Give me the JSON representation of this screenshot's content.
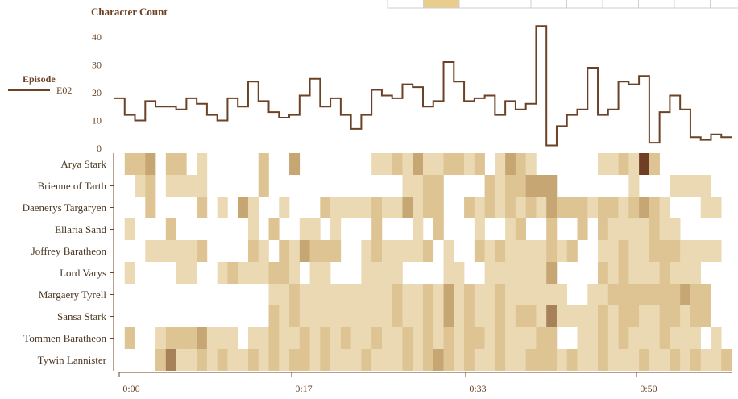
{
  "top_strip": {
    "cells": 10,
    "selected_index": 1
  },
  "chart_data": [
    {
      "type": "line",
      "title": "Character Count",
      "ylim": [
        0,
        45
      ],
      "yticks": [
        0,
        10,
        20,
        30,
        40
      ],
      "legend": {
        "title": "Episode",
        "placement": "left",
        "entries": [
          "E02"
        ]
      },
      "series": [
        {
          "name": "E02",
          "color": "#6b4226",
          "values": [
            18,
            12,
            10,
            17,
            15,
            15,
            14,
            18,
            16,
            12,
            10,
            18,
            15,
            24,
            17,
            13,
            11,
            12,
            19,
            25,
            15,
            18,
            12,
            7,
            12,
            21,
            19,
            18,
            23,
            22,
            15,
            17,
            31,
            24,
            17,
            18,
            19,
            12,
            17,
            14,
            16,
            44,
            1,
            8,
            12,
            14,
            29,
            12,
            14,
            24,
            23,
            26,
            2,
            13,
            19,
            14,
            4,
            3,
            5,
            4
          ]
        }
      ]
    },
    {
      "type": "heatmap",
      "rows": [
        "Arya Stark",
        "Brienne of Tarth",
        "Daenerys Targaryen",
        "Ellaria Sand",
        "Joffrey Baratheon",
        "Lord Varys",
        "Margaery Tyrell",
        "Sansa Stark",
        "Tommen Baratheon",
        "Tywin Lannister"
      ],
      "x_ticks": [
        "0:00",
        "0:17",
        "0:33",
        "0:50"
      ],
      "colors": [
        "#ead9b2",
        "#dec393",
        "#c6a774",
        "#a7815a",
        "#6e3f24"
      ],
      "matrix": [
        [
          0,
          2,
          2,
          3,
          0,
          2,
          2,
          0,
          1,
          0,
          0,
          0,
          0,
          0,
          2,
          0,
          0,
          3,
          0,
          0,
          0,
          0,
          0,
          0,
          0,
          1,
          1,
          2,
          1,
          3,
          1,
          1,
          2,
          2,
          1,
          2,
          0,
          1,
          3,
          2,
          1,
          0,
          0,
          0,
          0,
          0,
          0,
          1,
          1,
          2,
          1,
          5,
          2,
          0,
          0,
          0,
          0,
          0,
          0,
          0
        ],
        [
          0,
          0,
          1,
          2,
          0,
          1,
          1,
          1,
          1,
          0,
          0,
          0,
          0,
          0,
          2,
          0,
          0,
          0,
          0,
          0,
          0,
          0,
          0,
          0,
          0,
          0,
          0,
          0,
          1,
          1,
          2,
          2,
          0,
          0,
          0,
          0,
          2,
          1,
          2,
          2,
          3,
          3,
          3,
          0,
          0,
          0,
          0,
          0,
          0,
          0,
          1,
          0,
          0,
          0,
          1,
          1,
          1,
          1,
          0,
          0
        ],
        [
          0,
          0,
          0,
          2,
          0,
          0,
          0,
          0,
          2,
          0,
          1,
          0,
          3,
          1,
          0,
          0,
          1,
          0,
          0,
          0,
          2,
          1,
          1,
          1,
          1,
          2,
          1,
          1,
          3,
          1,
          2,
          2,
          0,
          0,
          2,
          1,
          2,
          1,
          2,
          1,
          2,
          1,
          3,
          2,
          2,
          2,
          1,
          2,
          2,
          1,
          2,
          3,
          2,
          1,
          0,
          0,
          0,
          1,
          1,
          0
        ],
        [
          0,
          1,
          0,
          0,
          0,
          2,
          0,
          0,
          0,
          0,
          0,
          0,
          0,
          1,
          0,
          2,
          0,
          0,
          1,
          1,
          0,
          1,
          0,
          0,
          0,
          2,
          0,
          0,
          0,
          1,
          0,
          2,
          0,
          0,
          0,
          1,
          0,
          0,
          1,
          2,
          0,
          0,
          2,
          0,
          0,
          2,
          0,
          2,
          1,
          1,
          1,
          1,
          2,
          1,
          1,
          0,
          0,
          0,
          0,
          0
        ],
        [
          0,
          0,
          0,
          1,
          1,
          1,
          1,
          1,
          2,
          0,
          0,
          0,
          0,
          2,
          1,
          0,
          2,
          1,
          3,
          2,
          2,
          2,
          0,
          0,
          1,
          2,
          1,
          1,
          1,
          1,
          2,
          0,
          1,
          0,
          0,
          2,
          1,
          2,
          1,
          1,
          1,
          1,
          2,
          1,
          2,
          0,
          0,
          1,
          1,
          2,
          1,
          1,
          2,
          2,
          2,
          1,
          1,
          1,
          1,
          0
        ],
        [
          0,
          1,
          0,
          0,
          0,
          0,
          1,
          1,
          0,
          0,
          1,
          2,
          1,
          1,
          1,
          2,
          2,
          1,
          0,
          1,
          1,
          0,
          0,
          0,
          1,
          1,
          1,
          1,
          0,
          0,
          0,
          0,
          1,
          1,
          0,
          0,
          1,
          1,
          1,
          1,
          1,
          1,
          3,
          0,
          0,
          0,
          0,
          2,
          1,
          2,
          1,
          1,
          1,
          2,
          1,
          1,
          1,
          0,
          0,
          0
        ],
        [
          0,
          0,
          0,
          0,
          0,
          0,
          0,
          0,
          0,
          0,
          0,
          0,
          0,
          0,
          0,
          1,
          1,
          2,
          1,
          1,
          1,
          1,
          1,
          1,
          1,
          1,
          1,
          2,
          1,
          1,
          2,
          1,
          3,
          1,
          2,
          1,
          1,
          2,
          1,
          1,
          1,
          1,
          1,
          1,
          0,
          0,
          1,
          1,
          2,
          2,
          2,
          2,
          2,
          2,
          2,
          3,
          2,
          2,
          0,
          0
        ],
        [
          0,
          0,
          0,
          0,
          0,
          0,
          0,
          0,
          0,
          0,
          0,
          0,
          0,
          0,
          0,
          2,
          1,
          2,
          1,
          1,
          1,
          1,
          1,
          1,
          1,
          1,
          1,
          2,
          1,
          1,
          2,
          1,
          3,
          1,
          2,
          1,
          1,
          2,
          1,
          2,
          2,
          1,
          4,
          1,
          1,
          1,
          1,
          2,
          1,
          2,
          2,
          1,
          1,
          2,
          2,
          1,
          2,
          2,
          0,
          0
        ],
        [
          0,
          2,
          0,
          0,
          1,
          2,
          2,
          2,
          3,
          1,
          1,
          1,
          0,
          1,
          1,
          2,
          1,
          1,
          2,
          1,
          2,
          1,
          2,
          1,
          1,
          2,
          1,
          1,
          2,
          1,
          2,
          1,
          2,
          1,
          2,
          2,
          1,
          2,
          1,
          1,
          1,
          2,
          2,
          0,
          0,
          1,
          1,
          2,
          1,
          2,
          1,
          1,
          1,
          2,
          1,
          1,
          1,
          0,
          1,
          0
        ],
        [
          0,
          0,
          0,
          0,
          2,
          4,
          1,
          1,
          2,
          1,
          2,
          1,
          1,
          2,
          1,
          2,
          1,
          2,
          2,
          1,
          2,
          1,
          1,
          1,
          2,
          1,
          1,
          1,
          2,
          1,
          2,
          3,
          2,
          1,
          2,
          1,
          1,
          2,
          1,
          1,
          2,
          2,
          2,
          1,
          2,
          1,
          1,
          2,
          1,
          1,
          1,
          2,
          1,
          1,
          2,
          1,
          2,
          1,
          1,
          2
        ]
      ]
    }
  ]
}
